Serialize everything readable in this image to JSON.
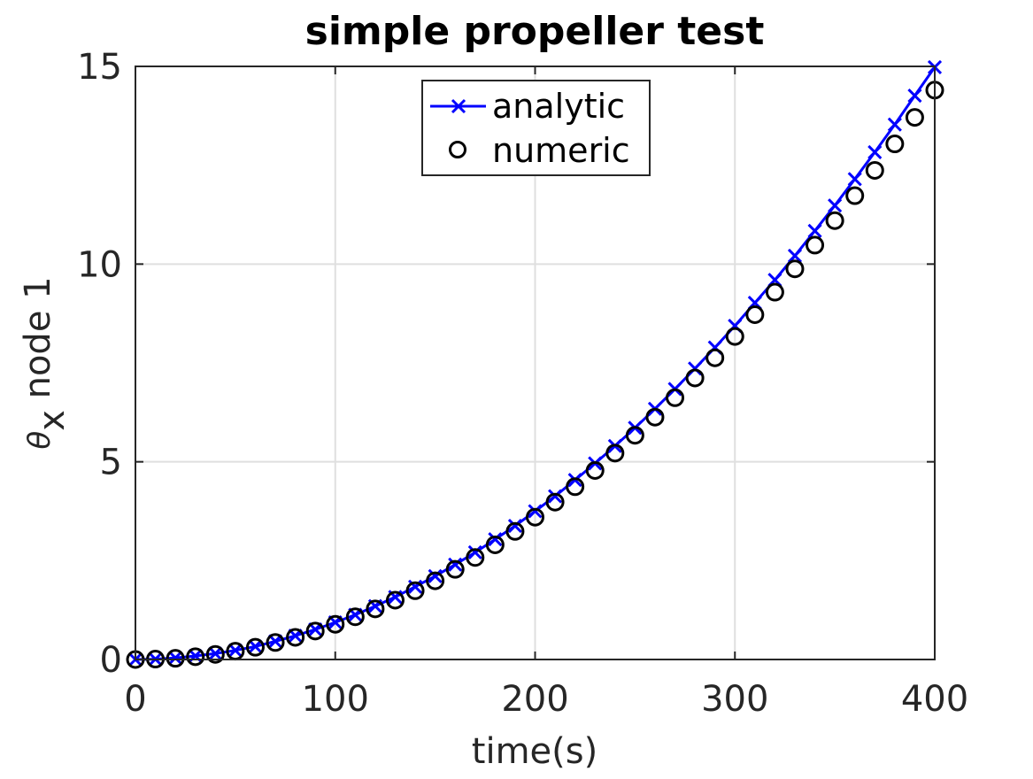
{
  "chart_data": {
    "type": "line",
    "title": "simple propeller test",
    "xlabel": "time(s)",
    "ylabel": {
      "symbol": "θ",
      "subscript": "x",
      "rest": " node 1"
    },
    "xlim": [
      0,
      400
    ],
    "ylim": [
      0,
      15
    ],
    "xticks": [
      0,
      100,
      200,
      300,
      400
    ],
    "yticks": [
      0,
      5,
      10,
      15
    ],
    "xtick_labels": [
      "0",
      "100",
      "200",
      "300",
      "400"
    ],
    "ytick_labels": [
      "0",
      "5",
      "10",
      "15"
    ],
    "grid": true,
    "legend_position": "top-center",
    "x": [
      0,
      10,
      20,
      30,
      40,
      50,
      60,
      70,
      80,
      90,
      100,
      110,
      120,
      130,
      140,
      150,
      160,
      170,
      180,
      190,
      200,
      210,
      220,
      230,
      240,
      250,
      260,
      270,
      280,
      290,
      300,
      310,
      320,
      330,
      340,
      350,
      360,
      370,
      380,
      390,
      400
    ],
    "series": [
      {
        "name": "analytic",
        "style": "line-x-marker",
        "color": "#0000ff",
        "values": [
          0,
          0.01,
          0.04,
          0.09,
          0.15,
          0.23,
          0.33,
          0.46,
          0.6,
          0.76,
          0.94,
          1.13,
          1.35,
          1.58,
          1.84,
          2.11,
          2.4,
          2.71,
          3.04,
          3.38,
          3.75,
          4.13,
          4.54,
          4.96,
          5.4,
          5.86,
          6.34,
          6.84,
          7.36,
          7.89,
          8.44,
          9.02,
          9.6,
          10.21,
          10.84,
          11.48,
          12.15,
          12.83,
          13.53,
          14.26,
          14.98
        ]
      },
      {
        "name": "numeric",
        "style": "circle-marker",
        "color": "#000000",
        "values": [
          0,
          0.01,
          0.03,
          0.07,
          0.13,
          0.21,
          0.31,
          0.43,
          0.56,
          0.72,
          0.89,
          1.08,
          1.28,
          1.5,
          1.74,
          1.99,
          2.28,
          2.58,
          2.9,
          3.24,
          3.6,
          3.98,
          4.37,
          4.78,
          5.22,
          5.67,
          6.13,
          6.62,
          7.12,
          7.63,
          8.17,
          8.72,
          9.29,
          9.88,
          10.48,
          11.1,
          11.73,
          12.37,
          13.04,
          13.71,
          14.4
        ]
      }
    ]
  }
}
